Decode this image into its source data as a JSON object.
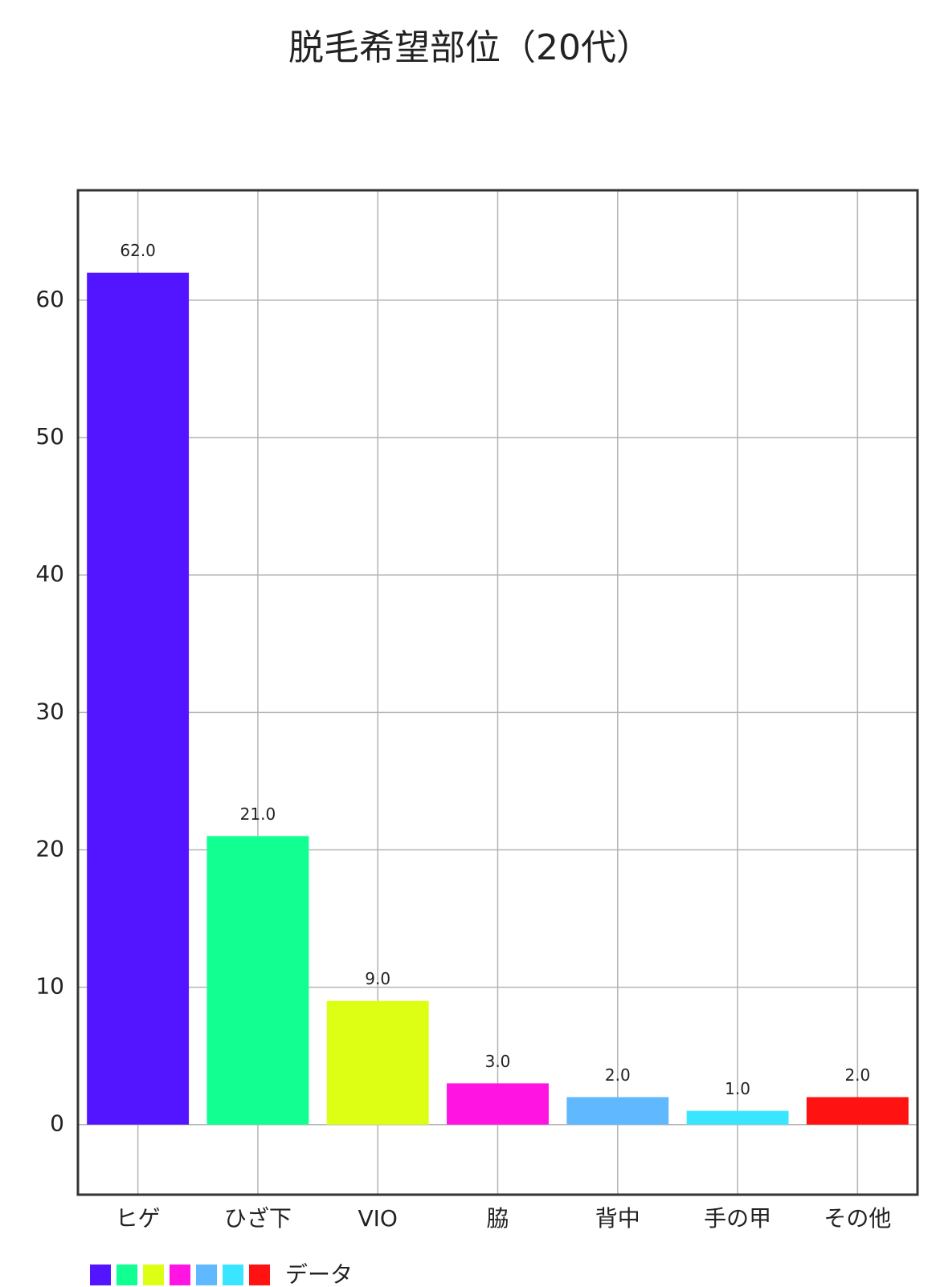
{
  "chart_data": {
    "type": "bar",
    "title": "脱毛希望部位（20代）",
    "categories": [
      "ヒゲ",
      "ひざ下",
      "VIO",
      "脇",
      "背中",
      "手の甲",
      "その他"
    ],
    "series": [
      {
        "name": "データ",
        "colors": [
          "#5314ff",
          "#12ff92",
          "#dcff14",
          "#ff14e1",
          "#60b8ff",
          "#3ae6ff",
          "#ff1212"
        ],
        "values": [
          62,
          21,
          9,
          3,
          2,
          1,
          2
        ],
        "value_labels": [
          "62.0",
          "21.0",
          "9.0",
          "3.0",
          "2.0",
          "1.0",
          "2.0"
        ]
      }
    ],
    "ylim": [
      -5.1,
      68
    ],
    "yticks": [
      0,
      10,
      20,
      30,
      40,
      50,
      60
    ],
    "grid": true,
    "legend": "bottom-left"
  }
}
